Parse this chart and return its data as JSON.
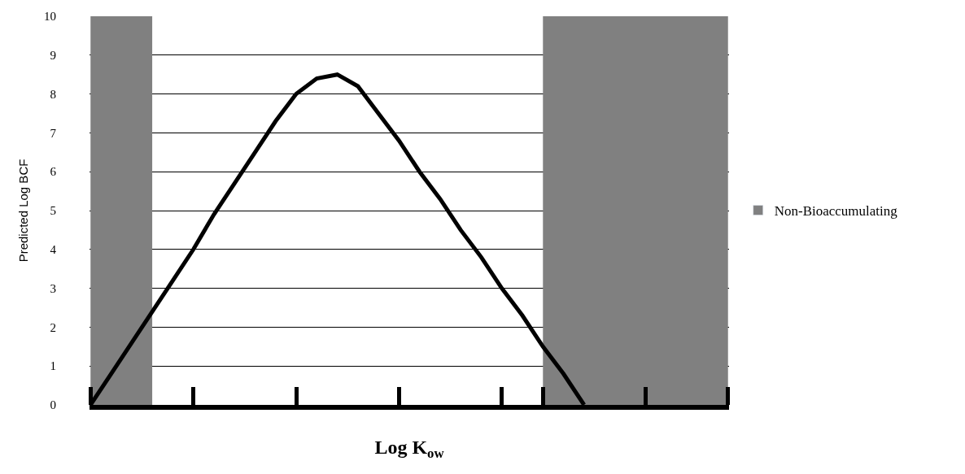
{
  "chart_data": {
    "type": "line",
    "xlabel": "Log K$_{ow}$",
    "ylabel": "Predicted Log BCF",
    "categories": [
      null,
      null,
      null,
      null,
      null,
      null,
      null,
      null,
      null,
      null,
      null,
      null,
      null,
      null,
      null,
      null,
      null,
      null,
      null,
      null,
      null,
      null,
      null,
      null,
      null,
      null,
      null,
      null,
      null,
      null,
      null,
      null
    ],
    "series": [
      {
        "color": "#000000",
        "values": [
          0,
          0.8,
          1.6,
          2.4,
          3.2,
          4.0,
          4.9,
          5.7,
          6.5,
          7.3,
          8.0,
          8.4,
          8.5,
          8.2,
          7.5,
          6.8,
          6.0,
          5.3,
          4.5,
          3.8,
          3.0,
          2.3,
          1.5,
          0.8,
          0,
          null,
          null,
          null,
          null,
          null,
          null,
          null
        ]
      },
      {
        "type": "bar",
        "name": "Non-Bioaccumulating",
        "color": "#808080",
        "values": [
          null,
          null,
          null,
          null,
          null,
          null,
          null,
          null,
          null,
          null,
          null,
          null,
          null,
          null,
          null,
          null,
          null,
          null,
          null,
          null,
          null,
          null,
          null,
          null,
          null,
          null,
          null,
          null,
          null,
          null,
          null,
          null
        ]
      }
    ],
    "ylim": [
      0,
      10
    ],
    "yticks": [
      0,
      1,
      2,
      3,
      4,
      5,
      6,
      7,
      8,
      9,
      10
    ],
    "grid": "y",
    "legend": "right",
    "tick_labels": "y"
  }
}
